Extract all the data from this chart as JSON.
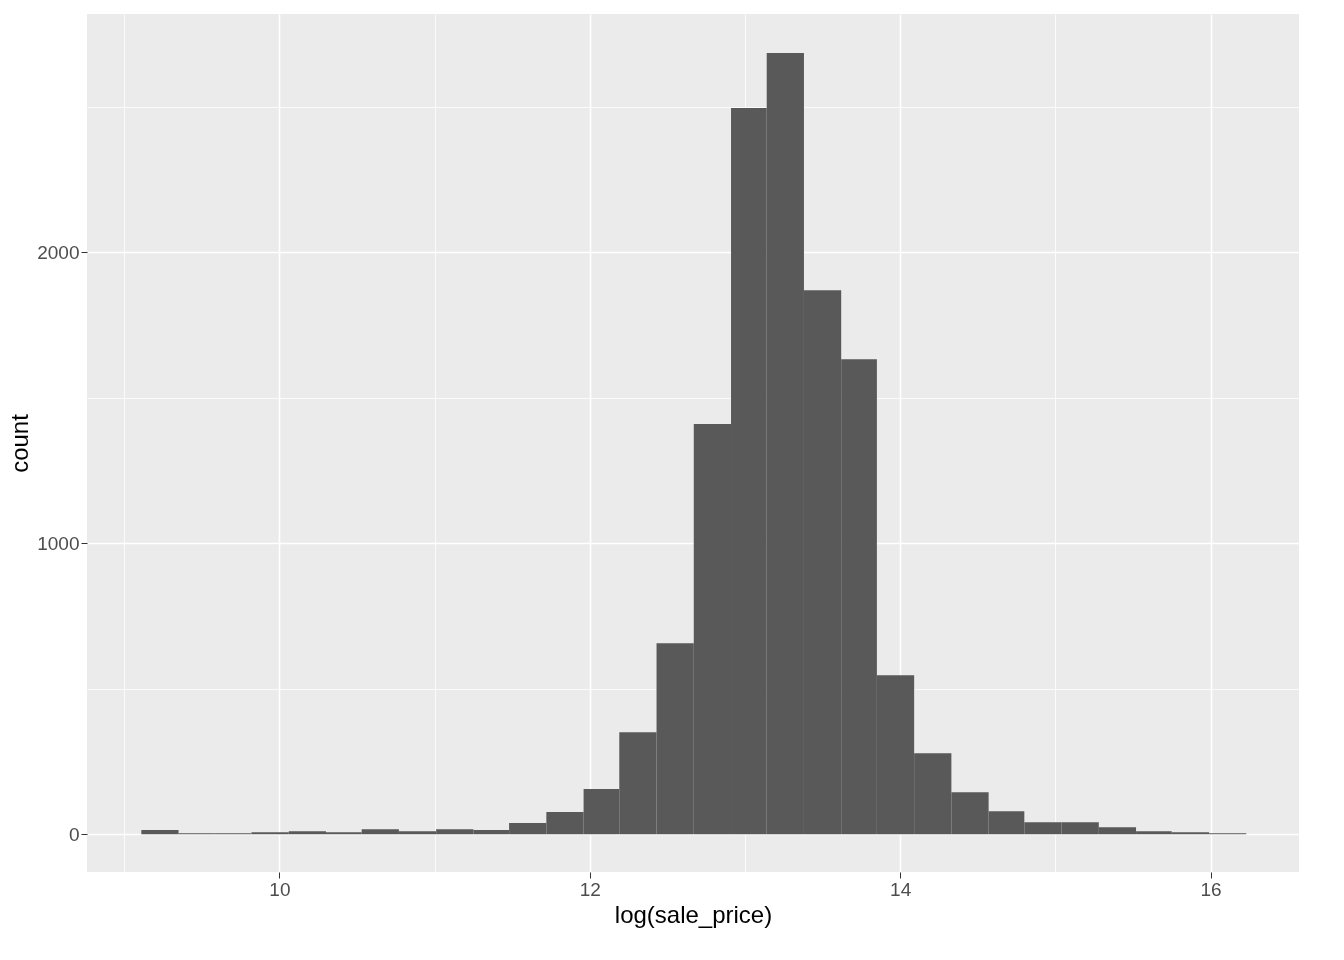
{
  "chart_data": {
    "type": "histogram",
    "xlabel": "log(sale_price)",
    "ylabel": "count",
    "color": "#595959",
    "bins": [
      9.11,
      9.35,
      9.58,
      9.82,
      10.06,
      10.3,
      10.53,
      10.77,
      11.01,
      11.25,
      11.48,
      11.72,
      11.96,
      12.19,
      12.43,
      12.67,
      12.91,
      13.14,
      13.38,
      13.62,
      13.85,
      14.09,
      14.33,
      14.57,
      14.8,
      15.04,
      15.28,
      15.52,
      15.75,
      15.99,
      16.23
    ],
    "values": [
      14,
      3,
      3,
      7,
      10,
      7,
      17,
      10,
      17,
      14,
      38,
      76,
      155,
      350,
      656,
      1409,
      2495,
      2684,
      1869,
      1632,
      546,
      278,
      144,
      79,
      41,
      41,
      24,
      10,
      7,
      3
    ],
    "xlim": [
      8.76,
      16.57
    ],
    "ylim": [
      -130,
      2818
    ],
    "xticks": [
      {
        "value": 9,
        "label": null
      },
      10,
      {
        "value": 11,
        "label": null
      },
      12,
      {
        "value": 13,
        "label": null
      },
      14,
      {
        "value": 15,
        "label": null
      },
      16
    ],
    "yticks": [
      0,
      {
        "value": 500,
        "label": null
      },
      1000,
      {
        "value": 1500,
        "label": null
      },
      2000,
      {
        "value": 2500,
        "label": null
      }
    ],
    "grid": true
  }
}
